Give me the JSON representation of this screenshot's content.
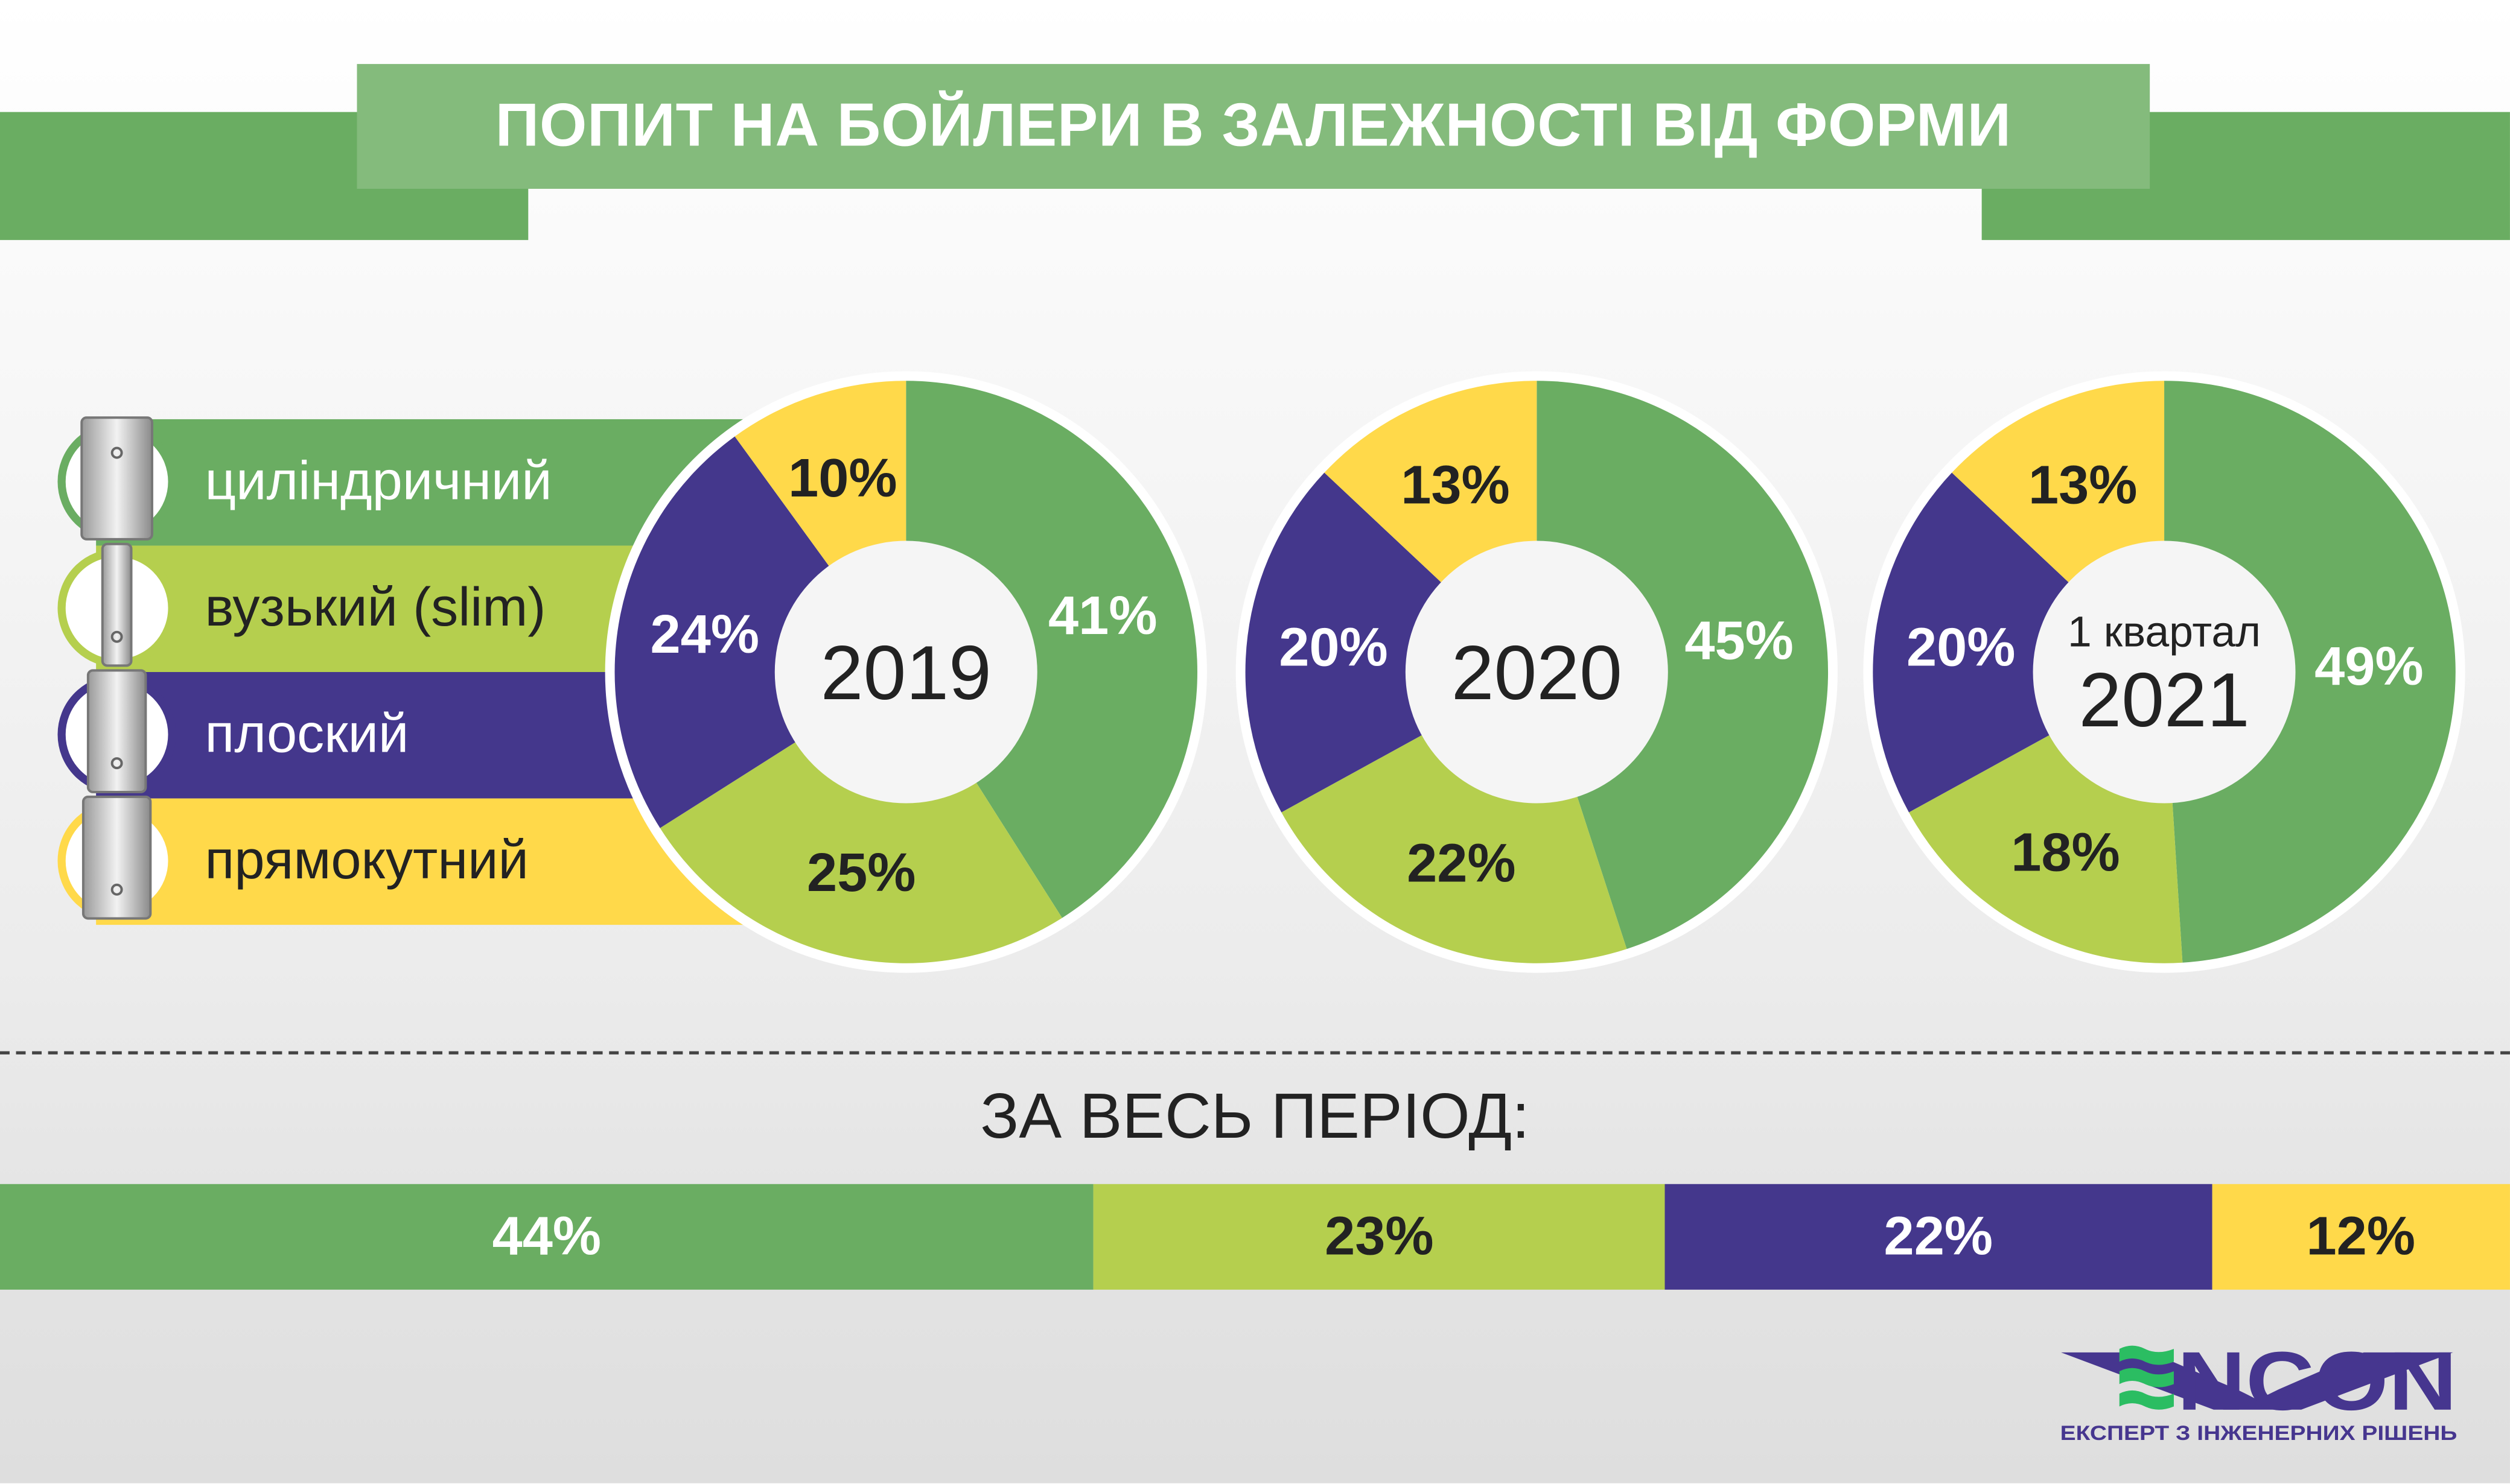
{
  "title": "ПОПИТ НА БОЙЛЕРИ В ЗАЛЕЖНОСТІ ВІД ФОРМИ",
  "colors": {
    "cylindrical": "#6aad62",
    "slim": "#b5cf4e",
    "flat": "#44378c",
    "rectangular": "#ffd94a",
    "title_bg": "#84bb7c"
  },
  "legend": [
    {
      "label": "циліндричний",
      "color": "#6aad62",
      "text_color": "#ffffff",
      "icon": "cylindrical-boiler-icon"
    },
    {
      "label": "вузький (slim)",
      "color": "#b5cf4e",
      "text_color": "#222222",
      "icon": "slim-boiler-icon"
    },
    {
      "label": "плоский",
      "color": "#44378c",
      "text_color": "#ffffff",
      "icon": "flat-boiler-icon"
    },
    {
      "label": "прямокутний",
      "color": "#ffd94a",
      "text_color": "#222222",
      "icon": "rectangular-boiler-icon"
    }
  ],
  "chart_data": [
    {
      "type": "pie",
      "variant": "donut",
      "center_label": "2019",
      "categories": [
        "циліндричний",
        "вузький (slim)",
        "плоский",
        "прямокутний"
      ],
      "values": [
        41,
        25,
        24,
        10
      ],
      "labels": [
        "41%",
        "25%",
        "24%",
        "10%"
      ]
    },
    {
      "type": "pie",
      "variant": "donut",
      "center_label": "2020",
      "categories": [
        "циліндричний",
        "вузький (slim)",
        "плоский",
        "прямокутний"
      ],
      "values": [
        45,
        22,
        20,
        13
      ],
      "labels": [
        "45%",
        "22%",
        "20%",
        "13%"
      ]
    },
    {
      "type": "pie",
      "variant": "donut",
      "center_label_top": "1 квартал",
      "center_label": "2021",
      "categories": [
        "циліндричний",
        "вузький (slim)",
        "плоский",
        "прямокутний"
      ],
      "values": [
        49,
        18,
        20,
        13
      ],
      "labels": [
        "49%",
        "18%",
        "20%",
        "13%"
      ]
    },
    {
      "type": "bar",
      "variant": "stacked-100",
      "title": "ЗА ВЕСЬ ПЕРІОД:",
      "categories": [
        "циліндричний",
        "вузький (slim)",
        "плоский",
        "прямокутний"
      ],
      "values": [
        44,
        23,
        22,
        12
      ],
      "labels": [
        "44%",
        "23%",
        "22%",
        "12%"
      ]
    }
  ],
  "logo": {
    "name": "VENCON",
    "tagline": "ЕКСПЕРТ З ІНЖЕНЕРНИХ РІШЕНЬ"
  }
}
